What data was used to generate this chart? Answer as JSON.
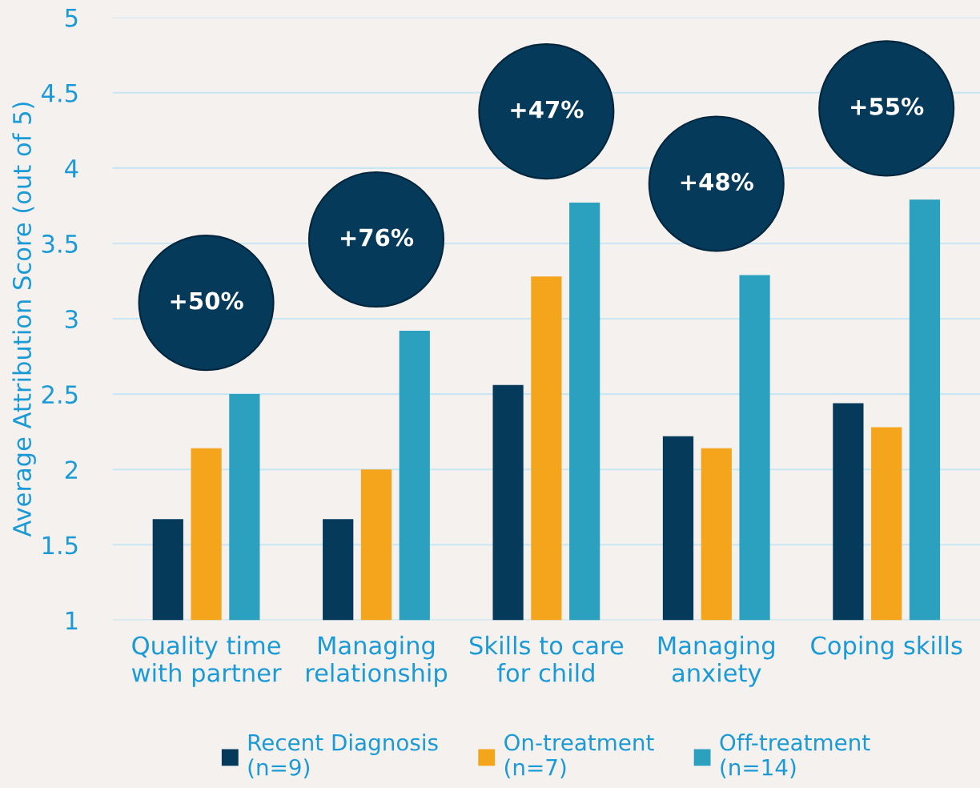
{
  "chart_data": {
    "type": "bar",
    "ylabel": "Average Attribution Score (out of 5)",
    "categories": [
      "Quality time\nwith partner",
      "Managing\nrelationship",
      "Skills to care\nfor child",
      "Managing\nanxiety",
      "Coping skills"
    ],
    "series": [
      {
        "name": "Recent Diagnosis\n(n=9)",
        "color": "#053a5a",
        "values": [
          1.67,
          1.67,
          2.56,
          2.22,
          2.44
        ]
      },
      {
        "name": "On-treatment\n(n=7)",
        "color": "#f5a51c",
        "values": [
          2.14,
          2.0,
          3.28,
          2.14,
          2.28
        ]
      },
      {
        "name": "Off-treatment\n(n=14)",
        "color": "#2ba0bf",
        "values": [
          2.5,
          2.92,
          3.77,
          3.29,
          3.79
        ]
      }
    ],
    "ylim": [
      1,
      5
    ],
    "yticks": [
      1,
      1.5,
      2,
      2.5,
      3,
      3.5,
      4,
      4.5,
      5
    ],
    "grid": "y",
    "legend": "bottom",
    "annotations": [
      "+50%",
      "+76%",
      "+47%",
      "+48%",
      "+55%"
    ]
  }
}
